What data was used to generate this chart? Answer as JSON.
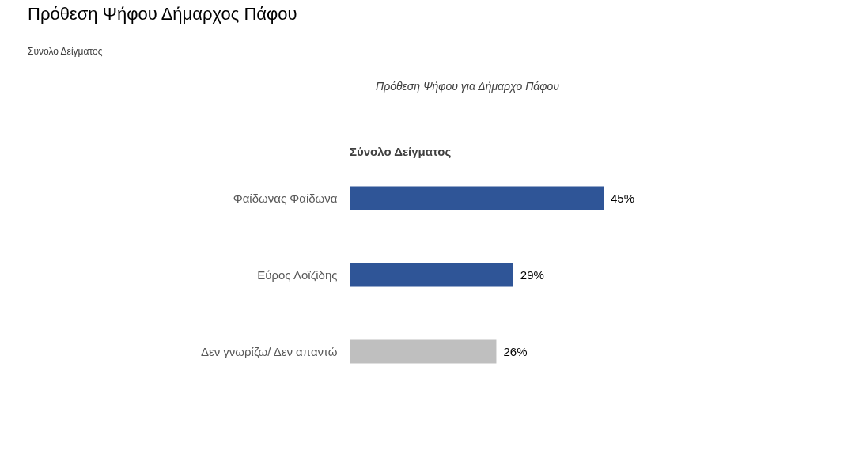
{
  "chart_data": {
    "type": "bar",
    "orientation": "horizontal",
    "title": "Πρόθεση Ψήφου Δήμαρχος Πάφου",
    "subtitle": "Σύνολο Δείγματος",
    "annotations": [
      "Πρόθεση Ψήφου για Δήμαρχο Πάφου",
      "Σύνολο Δείγματος"
    ],
    "categories": [
      "Φαίδωνας Φαίδωνα",
      "Εύρος Λοϊζίδης",
      "Δεν γνωρίζω/ Δεν απαντώ"
    ],
    "values": [
      45,
      29,
      26
    ],
    "colors": [
      "#2f5597",
      "#2f5597",
      "#bfbfbf"
    ],
    "value_labels": [
      "45%",
      "29%",
      "26%"
    ],
    "grid": false
  }
}
